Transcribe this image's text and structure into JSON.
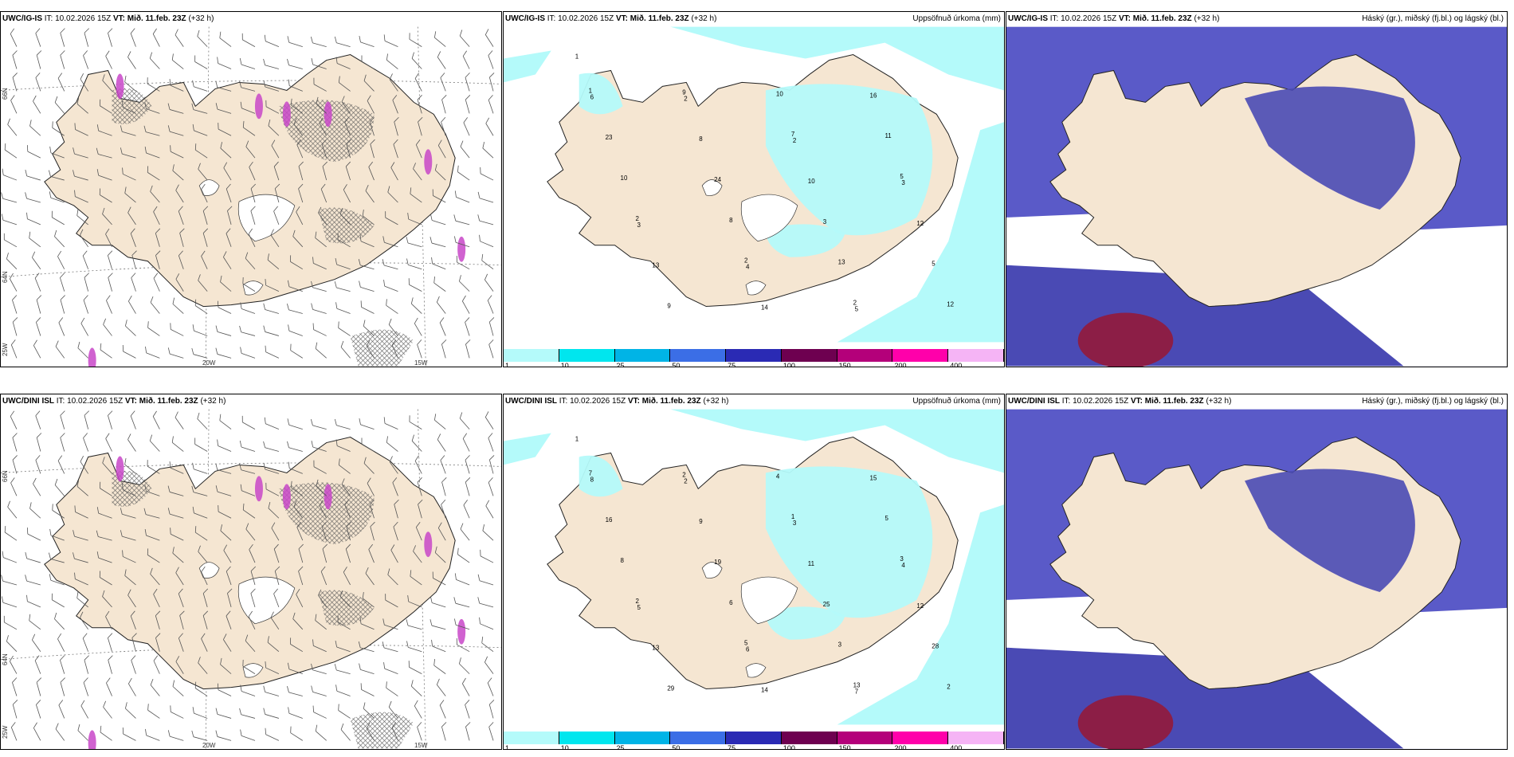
{
  "panels": {
    "r1c1": {
      "model": "UWC/IG-IS",
      "run": "IT: 10.02.2026 15Z",
      "valid": "VT: Mið. 11.feb. 23Z",
      "lead": "(+32 h)",
      "subtitle": ""
    },
    "r1c2": {
      "model": "UWC/IG-IS",
      "run": "IT: 10.02.2026 15Z",
      "valid": "VT: Mið. 11.feb. 23Z",
      "lead": "(+32 h)",
      "subtitle": "Uppsöfnuð úrkoma (mm)"
    },
    "r1c3": {
      "model": "UWC/IG-IS",
      "run": "IT: 10.02.2026 15Z",
      "valid": "VT: Mið. 11.feb. 23Z",
      "lead": "(+32 h)",
      "subtitle": "Háský (gr.), miðský (fj.bl.) og lágský (bl.)"
    },
    "r2c1": {
      "model": "UWC/DINI ISL",
      "run": "IT: 10.02.2026 15Z",
      "valid": "VT: Mið. 11.feb. 23Z",
      "lead": "(+32 h)",
      "subtitle": ""
    },
    "r2c2": {
      "model": "UWC/DINI ISL",
      "run": "IT: 10.02.2026 15Z",
      "valid": "VT: Mið. 11.feb. 23Z",
      "lead": "(+32 h)",
      "subtitle": "Uppsöfnuð úrkoma (mm)"
    },
    "r2c3": {
      "model": "UWC/DINI ISL",
      "run": "IT: 10.02.2026 15Z",
      "valid": "VT: Mið. 11.feb. 23Z",
      "lead": "(+32 h)",
      "subtitle": "Háský (gr.), miðský (fj.bl.) og lágský (bl.)"
    }
  },
  "axes": {
    "lat_66": "66N",
    "lat_64": "64N",
    "lon_25": "25W",
    "lon_20": "20W",
    "lon_15": "15W"
  },
  "colorbar": {
    "labels": [
      "1",
      "10",
      "25",
      "50",
      "75",
      "100",
      "150",
      "200",
      "400"
    ],
    "colors": [
      "#b4fafa",
      "#00e6ee",
      "#00b4e6",
      "#3b6ee6",
      "#2a2ab4",
      "#6e0050",
      "#b4007a",
      "#ff00aa",
      "#f5b4f5"
    ]
  },
  "colors": {
    "land": "#f5e6d2",
    "precip": "#b4fafa",
    "cloud_low": "#5a5ac8",
    "cloud_mid": "#4a4ab4",
    "high_cloud": "#8c1e46",
    "wind_barb": "#555555"
  },
  "precip_values": {
    "r1": [
      "1",
      "2",
      "2",
      "3",
      "3",
      "4",
      "5",
      "6",
      "8",
      "10",
      "12",
      "13",
      "14",
      "16",
      "23",
      "24",
      "3",
      "5",
      "9",
      "10",
      "11",
      "10",
      "8",
      "13",
      "12",
      "9",
      "7",
      "5",
      "2",
      "2",
      "2",
      "1"
    ],
    "r2": [
      "1",
      "2",
      "3",
      "4",
      "5",
      "6",
      "7",
      "8",
      "9",
      "11",
      "12",
      "13",
      "14",
      "15",
      "16",
      "19",
      "25",
      "28",
      "29",
      "4",
      "5",
      "8",
      "6",
      "3",
      "2",
      "2",
      "1",
      "3",
      "2",
      "5",
      "13",
      "7"
    ]
  }
}
